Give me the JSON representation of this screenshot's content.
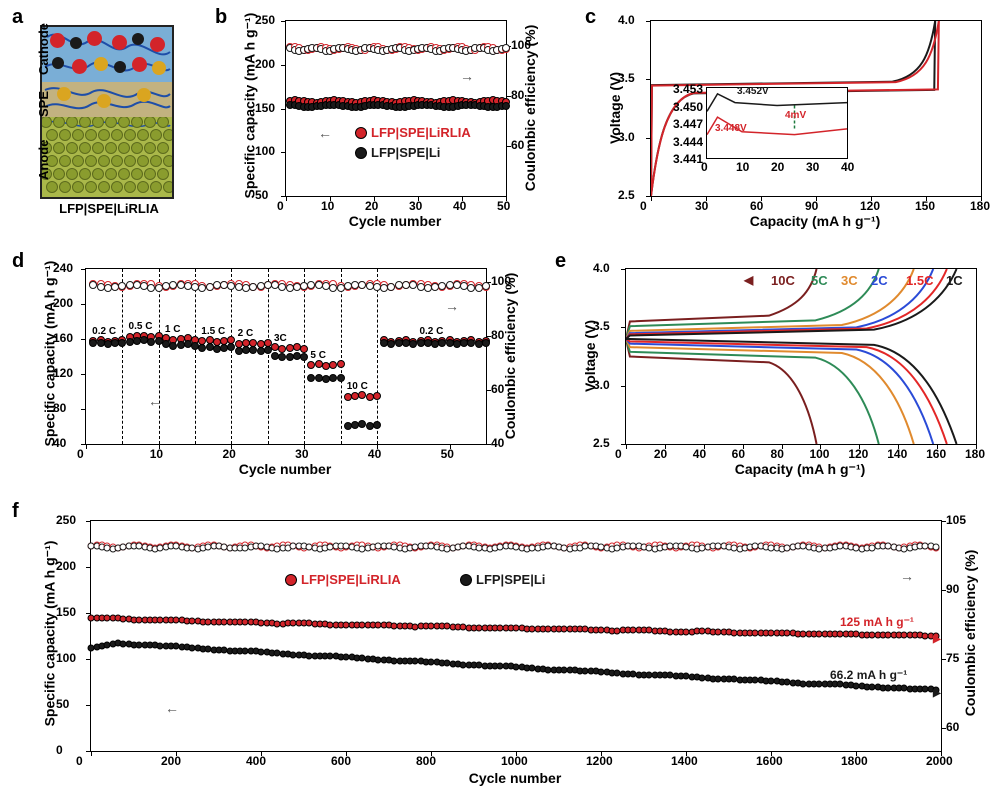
{
  "panelA": {
    "label": "a",
    "sideLabels": [
      "Cathode",
      "SPE",
      "Anode"
    ],
    "caption": "LFP|SPE|LiRLIA",
    "colors": {
      "cathode": "#7aaed6",
      "spe": "#c2b280",
      "anode": "#aab84a",
      "red": "#d3242a",
      "black": "#1a1a1a",
      "gold": "#daa520",
      "grain": "#8a9c2e"
    }
  },
  "panelB": {
    "label": "b",
    "type": "scatter",
    "xlabel": "Cycle number",
    "ylabel": "Specific capacity (mA h g⁻¹)",
    "y2label": "Coulombic efficiency (%)",
    "xlim": [
      0,
      50
    ],
    "xtick_step": 10,
    "ylim": [
      50,
      250
    ],
    "ytick_step": 50,
    "y2lim": [
      40,
      110
    ],
    "y2tick_step": 20,
    "legend": [
      {
        "label": "LFP|SPE|LiRLIA",
        "color": "#d3242a"
      },
      {
        "label": "LFP|SPE|Li",
        "color": "#1a1a1a"
      }
    ],
    "series_cap_red_y": 158,
    "series_cap_black_y": 153,
    "series_ce_y": 99,
    "marker_size": 6
  },
  "panelC": {
    "label": "c",
    "type": "line",
    "xlabel": "Capacity (mA h g⁻¹)",
    "ylabel": "Voltage (V)",
    "xlim": [
      0,
      180
    ],
    "xtick_step": 30,
    "ylim": [
      2.5,
      4.0
    ],
    "ytick_step": 0.5,
    "plateau_charge": 3.48,
    "plateau_discharge": 3.38,
    "cap_red": 157,
    "cap_black": 155,
    "colors": {
      "red": "#d3242a",
      "black": "#1a1a1a"
    },
    "line_width": 2,
    "inset": {
      "xlim": [
        0,
        40
      ],
      "ylim": [
        3.441,
        3.453
      ],
      "label1": "3.452V",
      "label2": "3.448V",
      "diff": "4mV",
      "color1": "#1a1a1a",
      "color2": "#d3242a"
    }
  },
  "panelD": {
    "label": "d",
    "type": "scatter",
    "xlabel": "Cycle number",
    "ylabel": "Specific capacity (mA h g⁻¹)",
    "y2label": "Coulombic efficiency (%)",
    "xlim": [
      0,
      55
    ],
    "xtick_step": 10,
    "ylim": [
      40,
      240
    ],
    "yticks": [
      40,
      80,
      120,
      160,
      200,
      240
    ],
    "y2lim": [
      40,
      105
    ],
    "y2ticks": [
      40,
      60,
      80,
      100
    ],
    "marker_size": 6,
    "rates": [
      "0.2 C",
      "0.5 C",
      "1 C",
      "1.5 C",
      "2 C",
      "3C",
      "5 C",
      "10 C",
      "0.2 C"
    ],
    "step_boundaries": [
      5,
      10,
      15,
      20,
      25,
      30,
      35,
      40
    ],
    "cap_red": [
      158,
      163,
      160,
      158,
      155,
      150,
      130,
      95,
      158
    ],
    "cap_black": [
      155,
      158,
      153,
      150,
      147,
      140,
      115,
      62,
      155
    ],
    "ce_y": 99,
    "colors": {
      "red": "#d3242a",
      "black": "#1a1a1a"
    }
  },
  "panelE": {
    "label": "e",
    "type": "line",
    "xlabel": "Capacity (mA h g⁻¹)",
    "ylabel": "Voltage (V)",
    "xlim": [
      0,
      180
    ],
    "xtick_step": 20,
    "ylim": [
      2.5,
      4.0
    ],
    "ytick_step": 0.5,
    "line_width": 2,
    "series": [
      {
        "label": "10C",
        "color": "#7a1f1f",
        "cap": 98,
        "ch_plat": 3.6,
        "dis_plat": 3.2
      },
      {
        "label": "5C",
        "color": "#2e8b57",
        "cap": 130,
        "ch_plat": 3.56,
        "dis_plat": 3.24
      },
      {
        "label": "3C",
        "color": "#e08a2e",
        "cap": 148,
        "ch_plat": 3.52,
        "dis_plat": 3.28
      },
      {
        "label": "2C",
        "color": "#2a4bd7",
        "cap": 158,
        "ch_plat": 3.5,
        "dis_plat": 3.31
      },
      {
        "label": "1.5C",
        "color": "#e32727",
        "cap": 165,
        "ch_plat": 3.49,
        "dis_plat": 3.33
      },
      {
        "label": "1C",
        "color": "#1a1a1a",
        "cap": 170,
        "ch_plat": 3.48,
        "dis_plat": 3.35
      }
    ]
  },
  "panelF": {
    "label": "f",
    "type": "scatter",
    "xlabel": "Cycle number",
    "ylabel": "Specific capacity (mA h g⁻¹)",
    "y2label": "Coulombic efficiency (%)",
    "xlim": [
      0,
      2000
    ],
    "xtick_step": 200,
    "ylim": [
      0,
      250
    ],
    "ytick_step": 50,
    "y2lim": [
      55,
      105
    ],
    "y2ticks": [
      60,
      75,
      90,
      105
    ],
    "legend": [
      {
        "label": "LFP|SPE|LiRLIA",
        "color": "#d3242a"
      },
      {
        "label": "LFP|SPE|Li",
        "color": "#1a1a1a"
      }
    ],
    "annotations": [
      {
        "text": "125 mA h g⁻¹",
        "color": "#d3242a"
      },
      {
        "text": "66.2 mA h g⁻¹",
        "color": "#1a1a1a"
      }
    ],
    "red_start": 145,
    "red_end": 125,
    "black_start": 120,
    "black_end": 66.2,
    "ce_y": 99.5,
    "marker_size": 5,
    "n_points": 160
  },
  "fontsize_axis": 14,
  "fontsize_tick": 12,
  "fontsize_panel_label": 20
}
